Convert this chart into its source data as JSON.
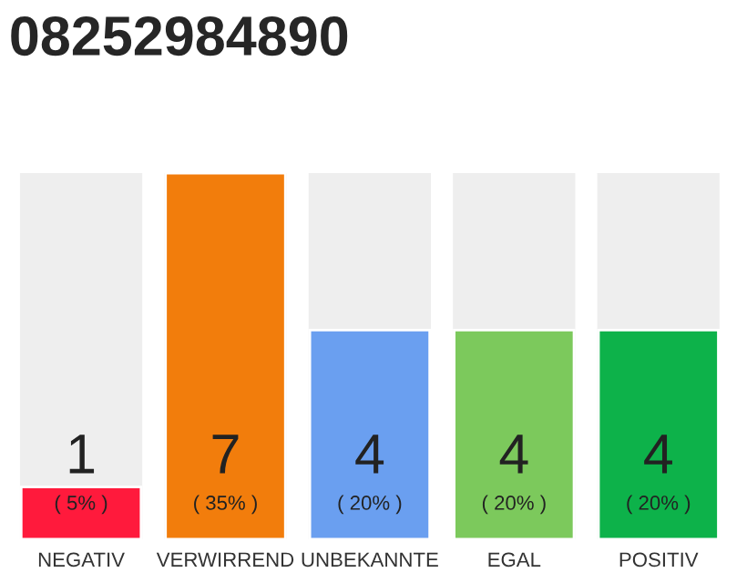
{
  "chart_data": {
    "type": "bar",
    "title": "08252984890",
    "categories": [
      "NEGATIV",
      "VERWIRREND",
      "UNBEKANNTE",
      "EGAL",
      "POSITIV"
    ],
    "values": [
      5,
      35,
      20,
      20,
      20
    ],
    "colors": [
      "#ff1a3c",
      "#f27d0c",
      "#6a9ff0",
      "#7cc95c",
      "#0db24a"
    ],
    "value_labels": [
      "( 5% )",
      "( 35% )",
      "( 20% )",
      "( 20% )",
      "( 20% )"
    ],
    "annotations": [
      "1",
      "7",
      "4",
      "4",
      "4"
    ],
    "tick_labels": "x",
    "grid": false
  }
}
